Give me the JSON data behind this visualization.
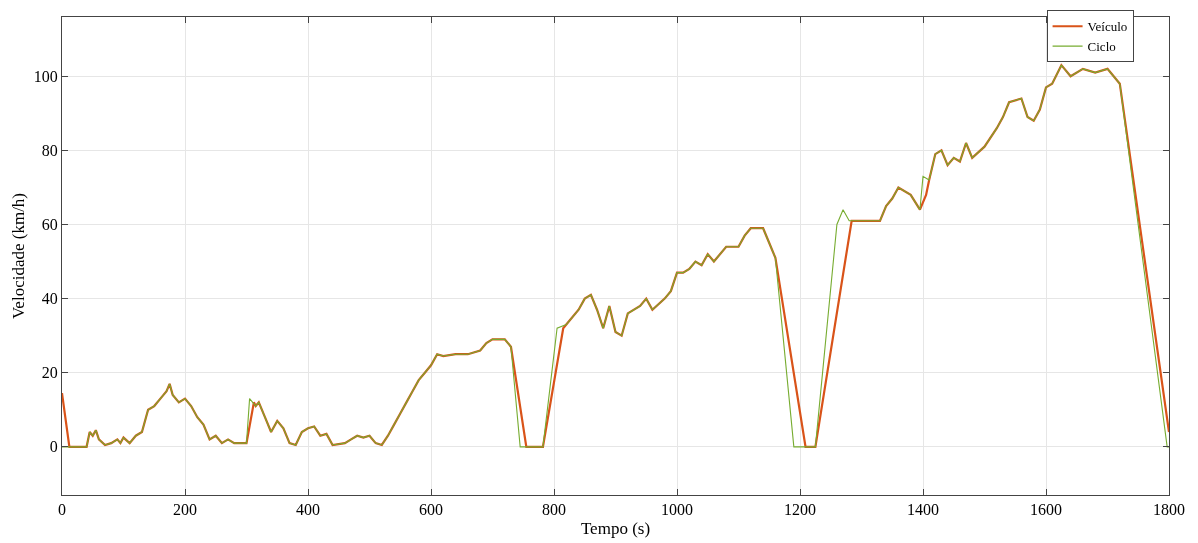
{
  "chart_data": {
    "type": "line",
    "xlabel": "Tempo (s)",
    "ylabel": "Velocidade (km/h)",
    "xlim": [
      0,
      1800
    ],
    "xticks": [
      0,
      200,
      400,
      600,
      800,
      1000,
      1200,
      1400,
      1600,
      1800
    ],
    "ylim": [
      -13,
      116
    ],
    "yticks": [
      0,
      20,
      40,
      60,
      80,
      100
    ],
    "grid": true,
    "legend": "top right",
    "line_style": "solid",
    "marker": "none",
    "series": [
      {
        "name": "Veículo",
        "color": "#d95319",
        "x": [
          0,
          12,
          40,
          45,
          50,
          55,
          60,
          70,
          80,
          90,
          95,
          100,
          110,
          120,
          130,
          140,
          150,
          160,
          170,
          175,
          180,
          190,
          200,
          210,
          220,
          230,
          240,
          250,
          260,
          270,
          280,
          290,
          300,
          312,
          315,
          320,
          330,
          340,
          350,
          360,
          370,
          380,
          390,
          400,
          410,
          420,
          430,
          440,
          460,
          470,
          480,
          490,
          500,
          510,
          520,
          530,
          540,
          550,
          560,
          570,
          580,
          590,
          600,
          610,
          620,
          640,
          660,
          680,
          690,
          700,
          710,
          720,
          730,
          755,
          782,
          815,
          820,
          840,
          850,
          860,
          870,
          880,
          890,
          900,
          910,
          920,
          940,
          950,
          960,
          980,
          990,
          1000,
          1010,
          1020,
          1030,
          1040,
          1050,
          1060,
          1080,
          1100,
          1110,
          1120,
          1140,
          1150,
          1160,
          1209,
          1225,
          1284,
          1300,
          1330,
          1340,
          1350,
          1360,
          1380,
          1395,
          1405,
          1410,
          1420,
          1430,
          1440,
          1450,
          1460,
          1470,
          1480,
          1500,
          1520,
          1530,
          1540,
          1560,
          1570,
          1580,
          1590,
          1600,
          1610,
          1625,
          1640,
          1660,
          1680,
          1700,
          1710,
          1720,
          1800
        ],
        "values": [
          14.5,
          0,
          0,
          4,
          3,
          4.5,
          2,
          0.5,
          1,
          2,
          1,
          2.5,
          1,
          3,
          4,
          10,
          11,
          13,
          15,
          17,
          14,
          12,
          13,
          11,
          8,
          6,
          2,
          3,
          1,
          2,
          1,
          1,
          1,
          12,
          11,
          12,
          8,
          4,
          7,
          5,
          1,
          0.5,
          4,
          5,
          5.5,
          3,
          3.5,
          0.5,
          1,
          2,
          3,
          2.5,
          3,
          1,
          0.5,
          3,
          6,
          9,
          12,
          15,
          18,
          20,
          22,
          25,
          24.5,
          25,
          25,
          26,
          28,
          29,
          29,
          29,
          27,
          0,
          0,
          32,
          33,
          37,
          40,
          41,
          37,
          32,
          38,
          31,
          30,
          36,
          38,
          40,
          37,
          40,
          42,
          47,
          47,
          48,
          50,
          49,
          52,
          50,
          54,
          54,
          57,
          59,
          59,
          55,
          51,
          0,
          0,
          61,
          61,
          61,
          65,
          67,
          70,
          68,
          64,
          68,
          72,
          79,
          80,
          76,
          78,
          77,
          82,
          78,
          81,
          86,
          89,
          93,
          94,
          89,
          88,
          91,
          97,
          98,
          103,
          100,
          102,
          101,
          102,
          100,
          98,
          4
        ]
      },
      {
        "name": "Ciclo",
        "color": "#77ac30",
        "x": [
          0,
          40,
          45,
          50,
          55,
          60,
          70,
          80,
          90,
          95,
          100,
          110,
          120,
          130,
          140,
          150,
          160,
          170,
          175,
          180,
          190,
          200,
          210,
          220,
          230,
          240,
          250,
          260,
          270,
          280,
          290,
          300,
          305,
          315,
          320,
          330,
          340,
          350,
          360,
          370,
          380,
          390,
          400,
          410,
          420,
          430,
          440,
          460,
          470,
          480,
          490,
          500,
          510,
          520,
          530,
          540,
          550,
          560,
          570,
          580,
          590,
          600,
          610,
          620,
          640,
          660,
          680,
          690,
          700,
          710,
          720,
          730,
          745,
          782,
          805,
          820,
          840,
          850,
          860,
          870,
          880,
          890,
          900,
          910,
          920,
          940,
          950,
          960,
          980,
          990,
          1000,
          1010,
          1020,
          1030,
          1040,
          1050,
          1060,
          1080,
          1100,
          1110,
          1120,
          1140,
          1150,
          1160,
          1190,
          1225,
          1260,
          1270,
          1280,
          1300,
          1330,
          1340,
          1350,
          1360,
          1380,
          1395,
          1400,
          1410,
          1420,
          1430,
          1440,
          1450,
          1460,
          1470,
          1480,
          1500,
          1520,
          1530,
          1540,
          1560,
          1570,
          1580,
          1590,
          1600,
          1610,
          1625,
          1640,
          1660,
          1680,
          1700,
          1710,
          1720,
          1797,
          1800
        ],
        "values": [
          0,
          0,
          4,
          3,
          4.5,
          2,
          0.5,
          1,
          2,
          1,
          2.5,
          1,
          3,
          4,
          10,
          11,
          13,
          15,
          17,
          14,
          12,
          13,
          11,
          8,
          6,
          2,
          3,
          1,
          2,
          1,
          1,
          1,
          13,
          11,
          12,
          8,
          4,
          7,
          5,
          1,
          0.5,
          4,
          5,
          5.5,
          3,
          3.5,
          0.5,
          1,
          2,
          3,
          2.5,
          3,
          1,
          0.5,
          3,
          6,
          9,
          12,
          15,
          18,
          20,
          22,
          25,
          24.5,
          25,
          25,
          26,
          28,
          29,
          29,
          29,
          27,
          0,
          0,
          32,
          33,
          37,
          40,
          41,
          37,
          32,
          38,
          31,
          30,
          36,
          38,
          40,
          37,
          40,
          42,
          47,
          47,
          48,
          50,
          49,
          52,
          50,
          54,
          54,
          57,
          59,
          59,
          55,
          51,
          0,
          0,
          60,
          64,
          61,
          61,
          61,
          65,
          67,
          70,
          68,
          64,
          73,
          72,
          79,
          80,
          76,
          78,
          77,
          82,
          78,
          81,
          86,
          89,
          93,
          94,
          89,
          88,
          91,
          97,
          98,
          103,
          100,
          102,
          101,
          102,
          100,
          98,
          0,
          0
        ]
      }
    ]
  }
}
